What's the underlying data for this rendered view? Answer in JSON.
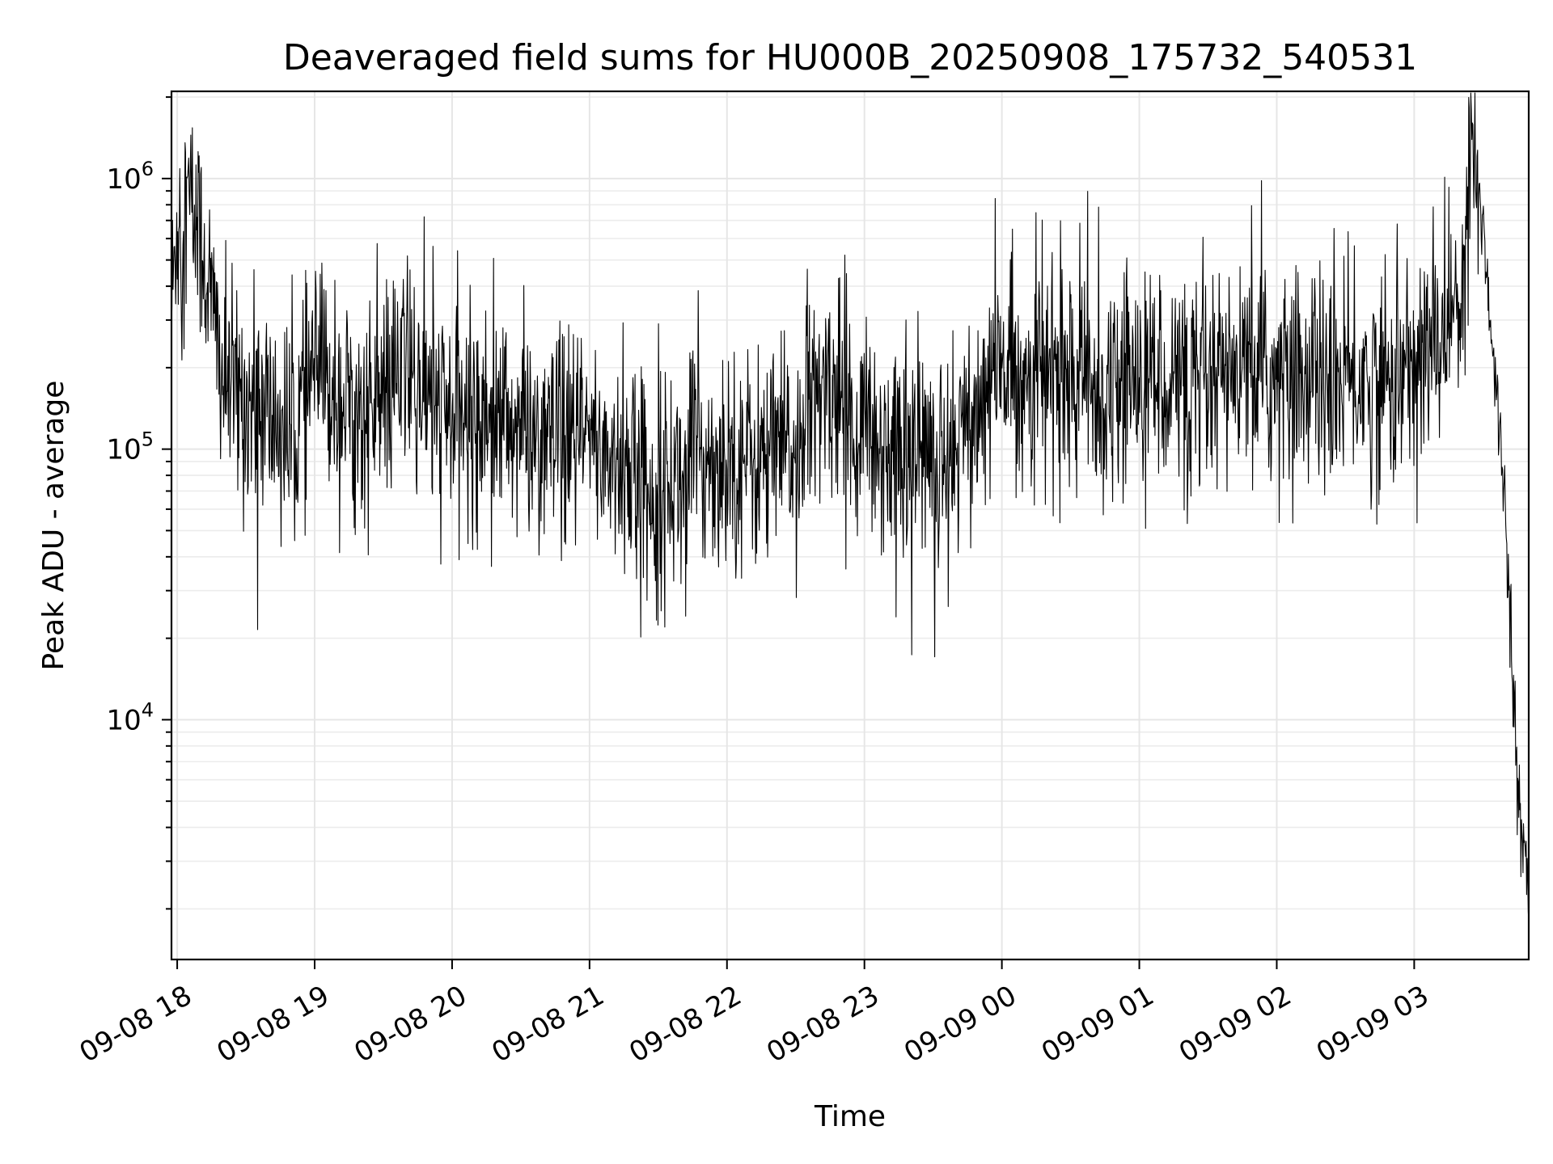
{
  "chart_data": {
    "type": "line",
    "title": "Deaveraged field sums for HU000B_20250908_175732_540531",
    "xlabel": "Time",
    "ylabel": "Peak ADU - average",
    "yscale": "log",
    "ylim": [
      1300,
      2100000
    ],
    "xlim": [
      "2025-09-08 17:57:30",
      "2025-09-09 03:50:00"
    ],
    "grid": true,
    "x_tick_labels": [
      "09-08 18",
      "09-08 19",
      "09-08 20",
      "09-08 21",
      "09-08 22",
      "09-08 23",
      "09-09 00",
      "09-09 01",
      "09-09 02",
      "09-09 03"
    ],
    "x_ticks": [
      "2025-09-08 18:00",
      "2025-09-08 19:00",
      "2025-09-08 20:00",
      "2025-09-08 21:00",
      "2025-09-08 22:00",
      "2025-09-08 23:00",
      "2025-09-09 00:00",
      "2025-09-09 01:00",
      "2025-09-09 02:00",
      "2025-09-09 03:00"
    ],
    "y_ticks": [
      {
        "value": 10000,
        "base": "10",
        "exp": "4"
      },
      {
        "value": 100000,
        "base": "10",
        "exp": "5"
      },
      {
        "value": 1000000,
        "base": "10",
        "exp": "6"
      }
    ],
    "series": [
      {
        "color": "#000000",
        "x": [
          "2025-09-08 17:57:30",
          "2025-09-08 18:00",
          "2025-09-08 18:05",
          "2025-09-08 18:10",
          "2025-09-08 18:15",
          "2025-09-08 18:20",
          "2025-09-08 18:25",
          "2025-09-08 18:30",
          "2025-09-08 18:40",
          "2025-09-08 18:50",
          "2025-09-08 19:00",
          "2025-09-08 19:10",
          "2025-09-08 19:20",
          "2025-09-08 19:30",
          "2025-09-08 19:40",
          "2025-09-08 19:50",
          "2025-09-08 20:00",
          "2025-09-08 20:15",
          "2025-09-08 20:30",
          "2025-09-08 20:45",
          "2025-09-08 21:00",
          "2025-09-08 21:15",
          "2025-09-08 21:30",
          "2025-09-08 21:45",
          "2025-09-08 22:00",
          "2025-09-08 22:15",
          "2025-09-08 22:30",
          "2025-09-08 22:45",
          "2025-09-08 23:00",
          "2025-09-08 23:15",
          "2025-09-08 23:30",
          "2025-09-08 23:45",
          "2025-09-09 00:00",
          "2025-09-09 00:15",
          "2025-09-09 00:30",
          "2025-09-09 00:45",
          "2025-09-09 01:00",
          "2025-09-09 01:15",
          "2025-09-09 01:30",
          "2025-09-09 01:45",
          "2025-09-09 02:00",
          "2025-09-09 02:15",
          "2025-09-09 02:30",
          "2025-09-09 02:45",
          "2025-09-09 03:00",
          "2025-09-09 03:10",
          "2025-09-09 03:20",
          "2025-09-09 03:25",
          "2025-09-09 03:30",
          "2025-09-09 03:35",
          "2025-09-09 03:40",
          "2025-09-09 03:45",
          "2025-09-09 03:50"
        ],
        "y": [
          320000,
          700000,
          850000,
          600000,
          350000,
          180000,
          160000,
          150000,
          130000,
          110000,
          200000,
          160000,
          130000,
          150000,
          200000,
          150000,
          130000,
          140000,
          120000,
          100000,
          110000,
          85000,
          70000,
          90000,
          95000,
          90000,
          100000,
          180000,
          110000,
          100000,
          95000,
          120000,
          200000,
          190000,
          180000,
          160000,
          200000,
          180000,
          160000,
          190000,
          180000,
          190000,
          180000,
          170000,
          200000,
          250000,
          380000,
          1300000,
          700000,
          200000,
          60000,
          5500,
          2500
        ]
      }
    ]
  }
}
